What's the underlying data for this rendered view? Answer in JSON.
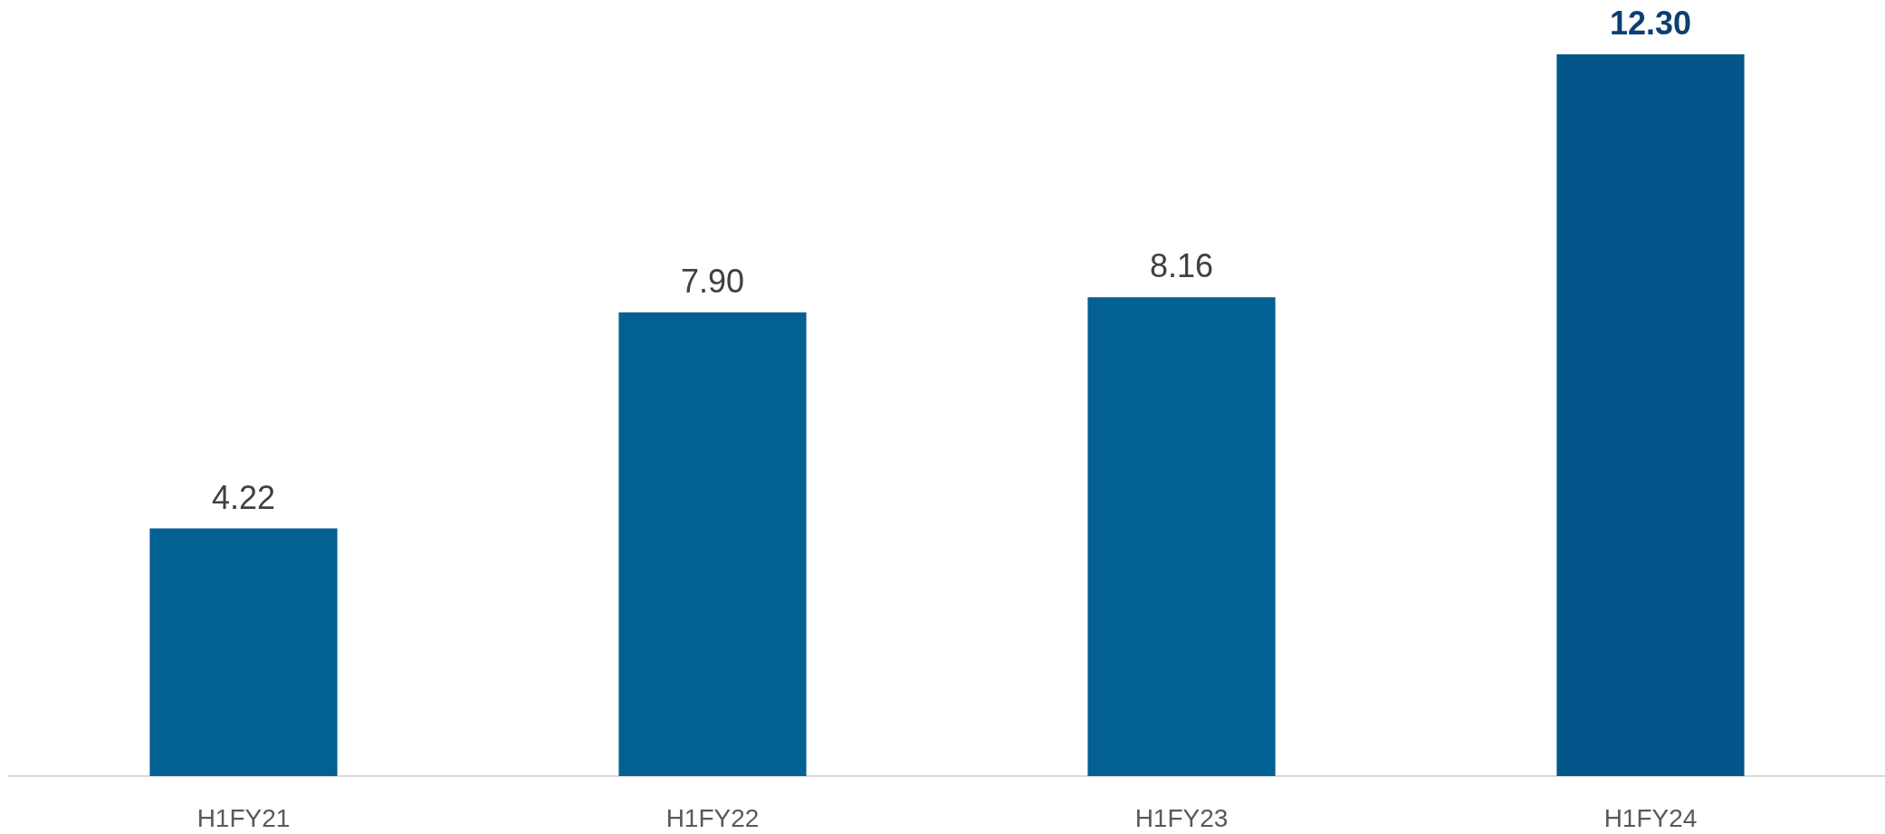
{
  "chart_data": {
    "type": "bar",
    "categories": [
      "H1FY21",
      "H1FY22",
      "H1FY23",
      "H1FY24"
    ],
    "values": [
      4.22,
      7.9,
      8.16,
      12.3
    ],
    "value_labels": [
      "4.22",
      "7.90",
      "8.16",
      "12.30"
    ],
    "colors": [
      "#036093",
      "#036093",
      "#036093",
      "#04568a"
    ],
    "legend": false,
    "grid": false
  }
}
